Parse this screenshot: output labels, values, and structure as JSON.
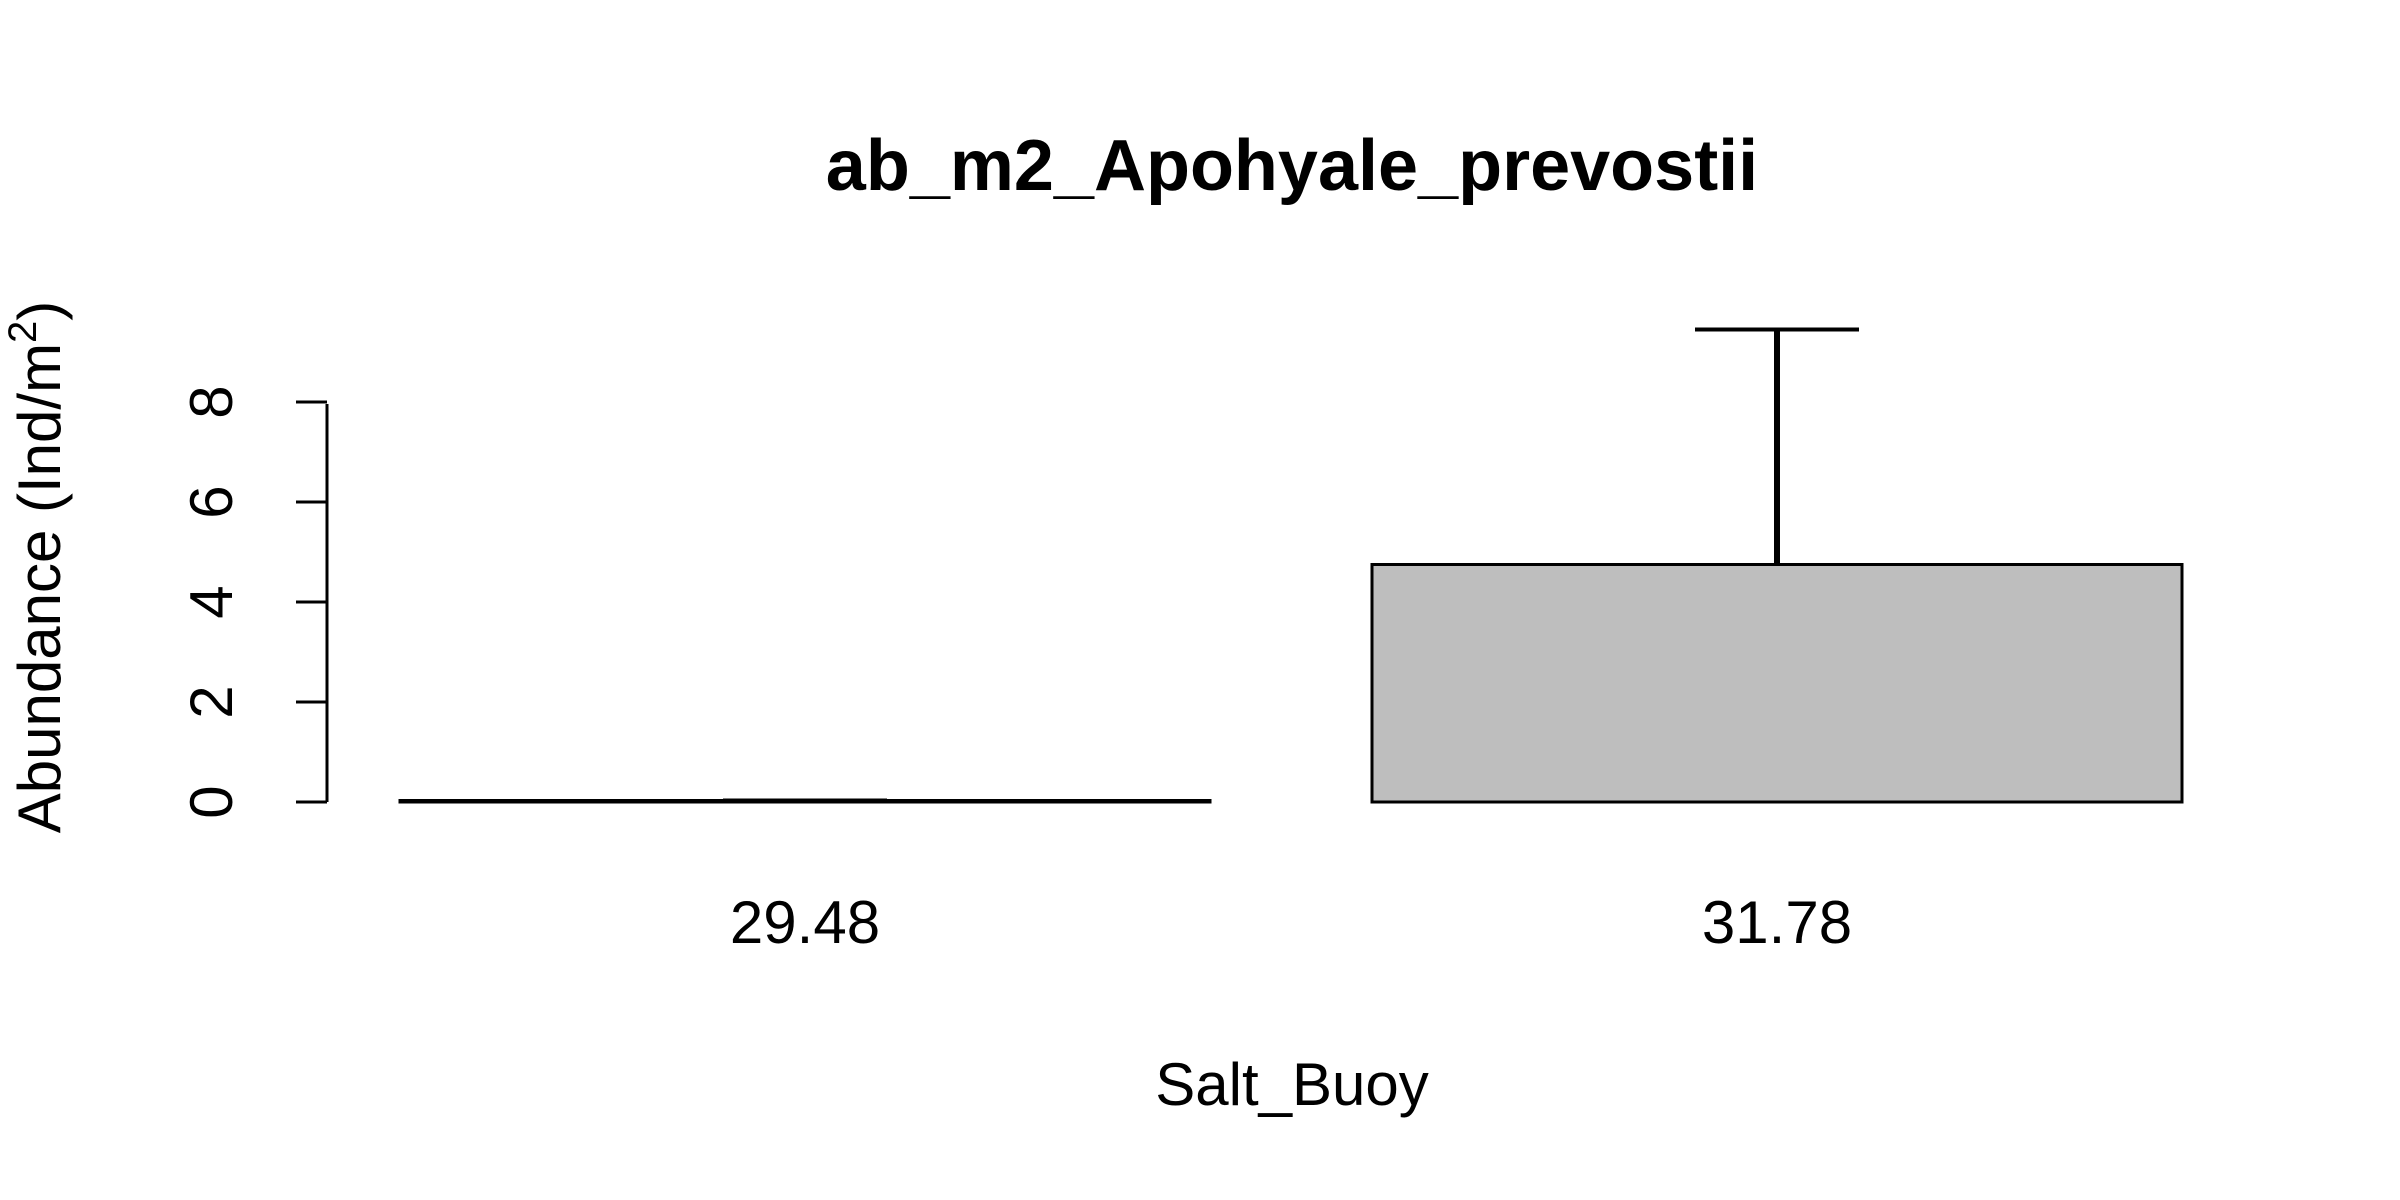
{
  "chart_data": {
    "type": "bar",
    "title": "ab_m2_Apohyale_prevostii",
    "xlabel": "Salt_Buoy",
    "ylabel_main": "Abundance (Ind/m",
    "ylabel_sup": "2",
    "ylabel_close": ")",
    "categories": [
      "29.48",
      "31.78"
    ],
    "values": [
      0.03,
      4.75
    ],
    "error_upper": [
      0.03,
      9.45
    ],
    "yticks": [
      "0",
      "2",
      "4",
      "6",
      "8"
    ],
    "ylim": [
      0,
      9.45
    ],
    "grid": false,
    "legend": "none",
    "colors": {
      "bar_fill": "#bebebe",
      "stroke": "#000000"
    }
  }
}
